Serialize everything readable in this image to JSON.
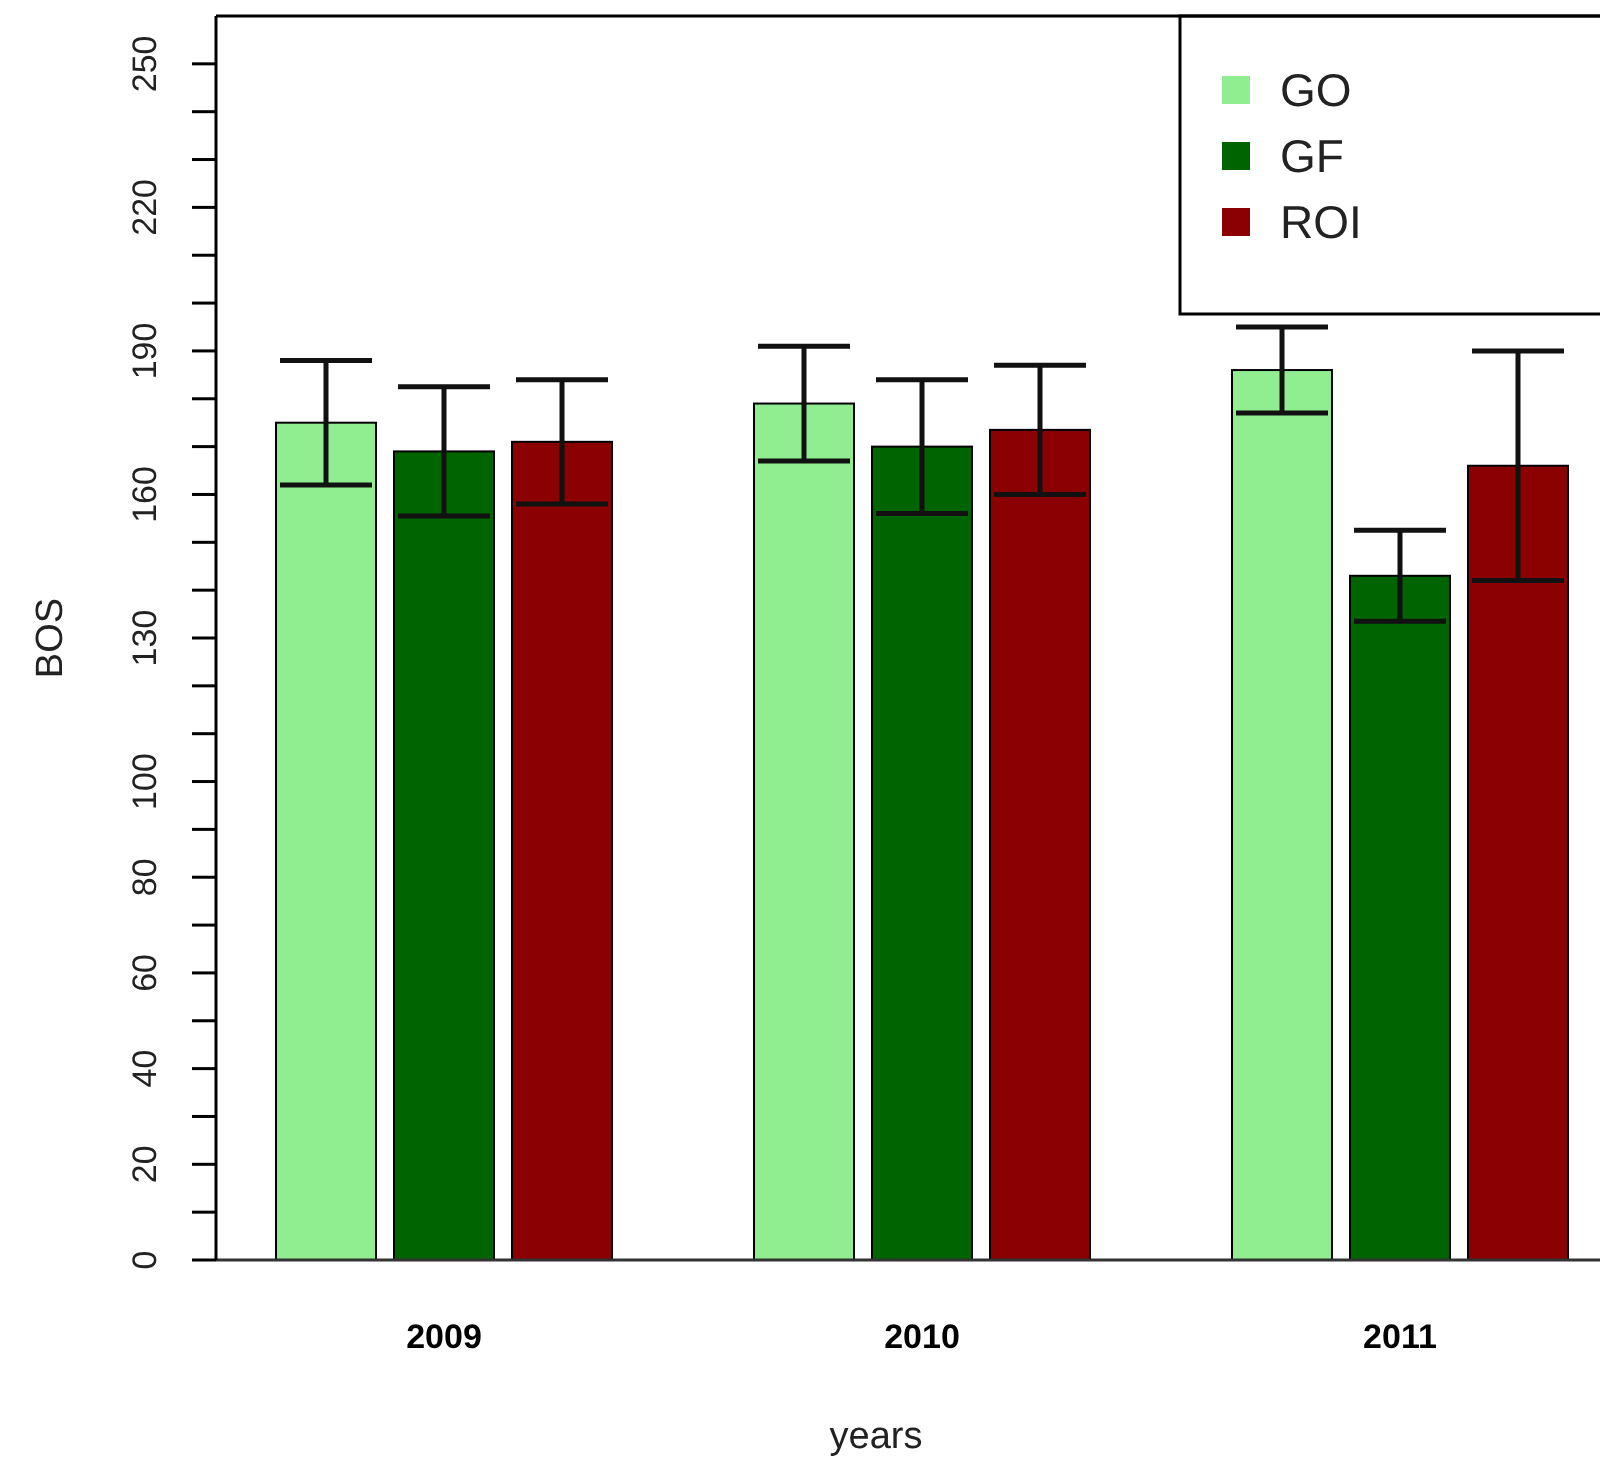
{
  "chart_data": {
    "type": "bar",
    "xlabel": "years",
    "ylabel": "BOS",
    "categories": [
      "2009",
      "2010",
      "2011"
    ],
    "series": [
      {
        "name": "GO",
        "color": "#90ee90",
        "values": [
          175,
          179,
          186
        ],
        "errors": [
          13,
          12,
          9
        ]
      },
      {
        "name": "GF",
        "color": "#006400",
        "values": [
          169,
          170,
          143
        ],
        "errors": [
          13.5,
          14,
          9.5
        ]
      },
      {
        "name": "ROI",
        "color": "#8b0000",
        "values": [
          171,
          173.5,
          166
        ],
        "errors": [
          13,
          13.5,
          24
        ]
      }
    ],
    "ylim": [
      0,
      260
    ],
    "yticks": [
      0,
      {
        "value": 10,
        "label": null
      },
      20,
      {
        "value": 30,
        "label": null
      },
      40,
      {
        "value": 50,
        "label": null
      },
      60,
      {
        "value": 70,
        "label": null
      },
      80,
      {
        "value": 90,
        "label": null
      },
      100,
      {
        "value": 110,
        "label": null
      },
      {
        "value": 120,
        "label": null
      },
      130,
      {
        "value": 140,
        "label": null
      },
      {
        "value": 150,
        "label": null
      },
      160,
      {
        "value": 170,
        "label": null
      },
      {
        "value": 180,
        "label": null
      },
      190,
      {
        "value": 200,
        "label": null
      },
      {
        "value": 210,
        "label": null
      },
      220,
      {
        "value": 230,
        "label": null
      },
      {
        "value": 240,
        "label": null
      },
      250
    ],
    "legend": "top right",
    "grid": false
  }
}
